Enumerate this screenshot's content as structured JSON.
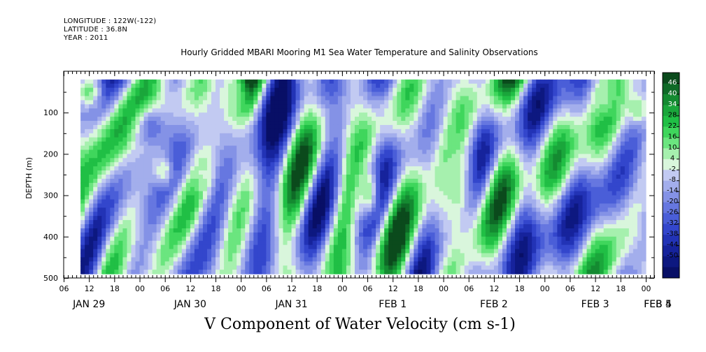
{
  "header": {
    "longitude": "LONGITUDE : 122W(-122)",
    "latitude": "LATITUDE : 36.8N",
    "year": "YEAR : 2011",
    "title": "Hourly Gridded MBARI Mooring M1 Sea Water Temperature and Salinity Observations"
  },
  "footer": {
    "variable_label": "V Component of Water Velocity (cm s-1)"
  },
  "chart_data": {
    "type": "heatmap",
    "title": "Hourly Gridded MBARI Mooring M1 Sea Water Temperature and Salinity Observations",
    "xlabel": "",
    "ylabel": "DEPTH (m)",
    "colorbar_label": "V Component of Water Velocity (cm s-1)",
    "x_range_hours_from_jan29_00": [
      6,
      146
    ],
    "data_x_range_hours_from_jan29_00": [
      10,
      144
    ],
    "y_range_depth_m": [
      0,
      500
    ],
    "y_inverted": true,
    "data_depth_range_m": [
      20,
      490
    ],
    "y_ticks": [
      100,
      200,
      300,
      400,
      500
    ],
    "y_tick_labels": [
      "100",
      "200",
      "300",
      "400",
      "500"
    ],
    "x_hour_ticks": [
      {
        "h": 6,
        "label": "06"
      },
      {
        "h": 12,
        "label": "12"
      },
      {
        "h": 18,
        "label": "18"
      },
      {
        "h": 24,
        "label": "00"
      },
      {
        "h": 30,
        "label": "06"
      },
      {
        "h": 36,
        "label": "12"
      },
      {
        "h": 42,
        "label": "18"
      },
      {
        "h": 48,
        "label": "00"
      },
      {
        "h": 54,
        "label": "06"
      },
      {
        "h": 60,
        "label": "12"
      },
      {
        "h": 66,
        "label": "18"
      },
      {
        "h": 72,
        "label": "00"
      },
      {
        "h": 78,
        "label": "06"
      },
      {
        "h": 84,
        "label": "12"
      },
      {
        "h": 90,
        "label": "18"
      },
      {
        "h": 96,
        "label": "00"
      },
      {
        "h": 102,
        "label": "06"
      },
      {
        "h": 108,
        "label": "12"
      },
      {
        "h": 114,
        "label": "18"
      },
      {
        "h": 120,
        "label": "00"
      },
      {
        "h": 126,
        "label": "06"
      },
      {
        "h": 132,
        "label": "12"
      },
      {
        "h": 138,
        "label": "18"
      },
      {
        "h": 144,
        "label": "00"
      }
    ],
    "x_day_labels": [
      {
        "h": 0,
        "label": "JAN 29"
      },
      {
        "h": 24,
        "label": "JAN 30"
      },
      {
        "h": 48,
        "label": "JAN 31"
      },
      {
        "h": 72,
        "label": "FEB  1"
      },
      {
        "h": 96,
        "label": "FEB  2"
      },
      {
        "h": 120,
        "label": "FEB  3"
      },
      {
        "h": 144,
        "label": "FEB  4"
      },
      {
        "h": 168,
        "label": "FEB  5"
      }
    ],
    "colorbar_levels": [
      "46",
      "40",
      "34",
      "28",
      "22",
      "16",
      "10",
      "4",
      "-2",
      "-8",
      "-14",
      "-20",
      "-26",
      "-32",
      "-38",
      "-44",
      "-50"
    ],
    "colorbar_colors": [
      "#0b4a1c",
      "#0f6a27",
      "#148a31",
      "#1aa63b",
      "#20bf45",
      "#3fd65c",
      "#6be57f",
      "#a6f0ae",
      "#d9f6dc",
      "#c2caf2",
      "#a3aeec",
      "#8492e6",
      "#6677e0",
      "#4a5ed8",
      "#3346cc",
      "#2233b6",
      "#16239c",
      "#0d1880",
      "#080f66"
    ],
    "value_range": [
      -50,
      46
    ],
    "grid": false,
    "bands_approx_cm_s": [
      {
        "h0": 10,
        "h1": 14,
        "d0": 20,
        "d1": 80,
        "v": 12
      },
      {
        "h0": 24,
        "h1": 30,
        "d0": 100,
        "d1": 180,
        "v": -18
      },
      {
        "h0": 28,
        "h1": 31,
        "d0": 210,
        "d1": 270,
        "v": 6
      },
      {
        "h0": 38,
        "h1": 40,
        "d0": 220,
        "d1": 280,
        "v": 5
      },
      {
        "h0": 44,
        "h1": 48,
        "d0": 20,
        "d1": 90,
        "v": 6
      },
      {
        "h0": 76,
        "h1": 80,
        "d0": 230,
        "d1": 350,
        "v": 10
      },
      {
        "h0": 96,
        "h1": 102,
        "d0": 150,
        "d1": 400,
        "v": 8
      },
      {
        "h0": 132,
        "h1": 136,
        "d0": 20,
        "d1": 100,
        "v": 8
      },
      {
        "h0": 140,
        "h1": 144,
        "d0": 60,
        "d1": 120,
        "v": 10
      }
    ]
  }
}
